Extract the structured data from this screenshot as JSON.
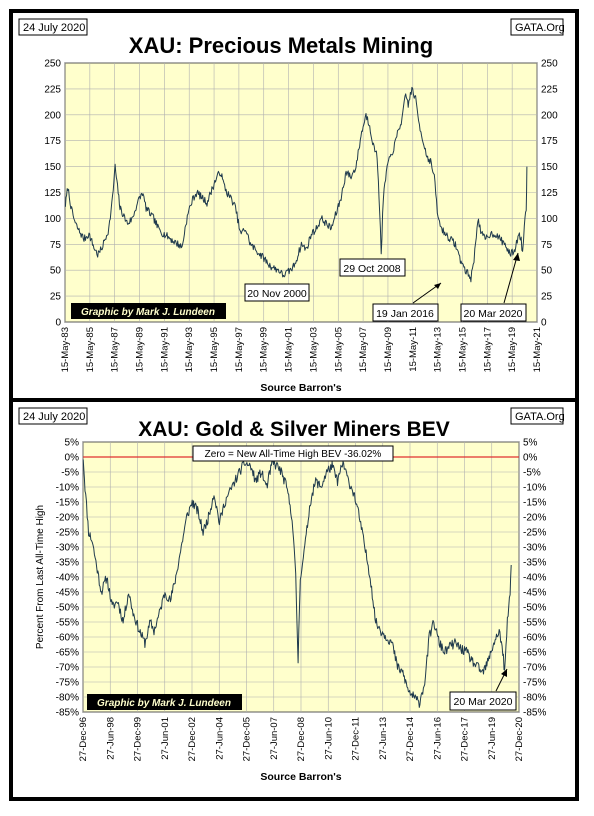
{
  "charts": [
    {
      "date_label": "24 July 2020",
      "source_label": "GATA.Org",
      "title": "XAU: Precious Metals Mining",
      "xlabel": "Source Barron's",
      "credit": "Graphic by Mark J. Lundeen",
      "subtitle": ""
    },
    {
      "date_label": "24 July 2020",
      "source_label": "GATA.Org",
      "title": "XAU: Gold & Silver Miners BEV",
      "xlabel": "Source Barron's",
      "ylabel": "Percent From Last All-Time High",
      "credit": "Graphic by Mark J. Lundeen",
      "subtitle": "Zero = New All-Time High BEV -36.02%"
    }
  ],
  "colors": {
    "plot_bg": "#ffffcc",
    "line": "#1f3a4d",
    "zero_line": "#e03030",
    "credit_bg": "#000000",
    "credit_text": "#ffffcc",
    "frame": "#000000"
  },
  "chart_data": [
    {
      "type": "line",
      "title": "XAU: Precious Metals Mining",
      "xlabel": "Source Barron's",
      "ylabel": "",
      "ylim": [
        0,
        250
      ],
      "yticks": [
        0,
        25,
        50,
        75,
        100,
        125,
        150,
        175,
        200,
        225,
        250
      ],
      "xlim": [
        1983.37,
        2021.37
      ],
      "xticks": [
        "15-May-83",
        "15-May-85",
        "15-May-87",
        "15-May-89",
        "15-May-91",
        "15-May-93",
        "15-May-95",
        "15-May-97",
        "15-May-99",
        "15-May-01",
        "15-May-03",
        "15-May-05",
        "15-May-07",
        "15-May-09",
        "15-May-11",
        "15-May-13",
        "15-May-15",
        "15-May-17",
        "15-May-19",
        "15-May-21"
      ],
      "grid": true,
      "series": [
        {
          "x": [
            1983.4,
            1983.6,
            1983.9,
            1984.2,
            1984.5,
            1984.9,
            1985.3,
            1985.7,
            1986.0,
            1986.3,
            1986.6,
            1986.9,
            1987.2,
            1987.4,
            1987.6,
            1987.8,
            1988.0,
            1988.4,
            1988.8,
            1989.2,
            1989.6,
            1989.9,
            1990.2,
            1990.5,
            1990.9,
            1991.3,
            1991.7,
            1992.1,
            1992.5,
            1992.8,
            1993.1,
            1993.4,
            1993.7,
            1994.0,
            1994.4,
            1994.8,
            1995.2,
            1995.6,
            1995.9,
            1996.1,
            1996.4,
            1996.8,
            1997.1,
            1997.5,
            1997.9,
            1998.3,
            1998.7,
            1999.1,
            1999.5,
            1999.8,
            2000.2,
            2000.6,
            2000.9,
            2001.3,
            2001.7,
            2002.0,
            2002.4,
            2002.8,
            2003.2,
            2003.6,
            2004.0,
            2004.4,
            2004.8,
            2005.2,
            2005.6,
            2006.0,
            2006.4,
            2006.8,
            2007.2,
            2007.6,
            2007.9,
            2008.2,
            2008.5,
            2008.7,
            2008.83,
            2009.0,
            2009.3,
            2009.6,
            2009.9,
            2010.2,
            2010.5,
            2010.8,
            2011.0,
            2011.3,
            2011.6,
            2011.9,
            2012.2,
            2012.5,
            2012.8,
            2013.1,
            2013.4,
            2013.7,
            2014.0,
            2014.4,
            2014.8,
            2015.2,
            2015.6,
            2015.9,
            2016.05,
            2016.3,
            2016.6,
            2016.9,
            2017.2,
            2017.6,
            2018.0,
            2018.4,
            2018.8,
            2019.2,
            2019.6,
            2019.9,
            2020.1,
            2020.21,
            2020.35,
            2020.5,
            2020.56
          ],
          "values": [
            113,
            130,
            108,
            95,
            88,
            80,
            85,
            72,
            65,
            70,
            80,
            90,
            120,
            150,
            130,
            110,
            105,
            95,
            100,
            115,
            125,
            110,
            105,
            100,
            90,
            85,
            82,
            78,
            75,
            72,
            95,
            110,
            120,
            125,
            120,
            115,
            128,
            140,
            145,
            135,
            125,
            118,
            110,
            85,
            90,
            75,
            70,
            65,
            60,
            55,
            52,
            50,
            45,
            48,
            52,
            60,
            75,
            70,
            85,
            90,
            100,
            95,
            90,
            105,
            120,
            145,
            140,
            150,
            180,
            200,
            190,
            170,
            160,
            110,
            65,
            120,
            150,
            160,
            170,
            185,
            195,
            220,
            210,
            225,
            215,
            190,
            175,
            160,
            155,
            140,
            100,
            90,
            85,
            80,
            75,
            60,
            50,
            45,
            42,
            60,
            100,
            85,
            80,
            85,
            85,
            80,
            75,
            65,
            70,
            85,
            80,
            65,
            95,
            110,
            150
          ],
          "smooth": 2,
          "noise": 3.5,
          "seed": 7
        }
      ],
      "annotations": [
        "20 Nov 2000",
        "29 Oct 2008",
        "19 Jan 2016",
        "20 Mar 2020"
      ]
    },
    {
      "type": "line",
      "title": "XAU: Gold & Silver Miners BEV",
      "xlabel": "Source Barron's",
      "ylabel": "Percent From Last All-Time High",
      "ylim": [
        -85,
        5
      ],
      "yticks": [
        5,
        0,
        -5,
        -10,
        -15,
        -20,
        -25,
        -30,
        -35,
        -40,
        -45,
        -50,
        -55,
        -60,
        -65,
        -70,
        -75,
        -80,
        -85
      ],
      "xlim": [
        1996.99,
        2020.99
      ],
      "xticks": [
        "27-Dec-96",
        "27-Jun-98",
        "27-Dec-99",
        "27-Jun-01",
        "27-Dec-02",
        "27-Jun-04",
        "27-Dec-05",
        "27-Jun-07",
        "27-Dec-08",
        "27-Jun-10",
        "27-Dec-11",
        "27-Jun-13",
        "27-Dec-14",
        "27-Jun-16",
        "27-Dec-17",
        "27-Jun-19",
        "27-Dec-20"
      ],
      "grid": true,
      "zero_line": 0,
      "series": [
        {
          "x": [
            1997.0,
            1997.1,
            1997.3,
            1997.5,
            1997.7,
            1998.0,
            1998.3,
            1998.6,
            1998.9,
            1999.2,
            1999.5,
            1999.75,
            2000.1,
            2000.4,
            2000.7,
            2000.9,
            2001.2,
            2001.5,
            2001.8,
            2002.1,
            2002.4,
            2002.7,
            2003.0,
            2003.3,
            2003.6,
            2003.9,
            2004.2,
            2004.5,
            2004.8,
            2005.2,
            2005.6,
            2005.9,
            2006.2,
            2006.5,
            2006.8,
            2007.1,
            2007.4,
            2007.7,
            2007.9,
            2008.2,
            2008.5,
            2008.7,
            2008.83,
            2008.95,
            2009.2,
            2009.5,
            2009.8,
            2010.1,
            2010.4,
            2010.7,
            2011.0,
            2011.3,
            2011.6,
            2011.9,
            2012.2,
            2012.5,
            2012.8,
            2013.1,
            2013.4,
            2013.7,
            2014.0,
            2014.3,
            2014.6,
            2014.9,
            2015.2,
            2015.5,
            2015.8,
            2016.05,
            2016.3,
            2016.6,
            2016.9,
            2017.2,
            2017.5,
            2017.8,
            2018.1,
            2018.4,
            2018.7,
            2019.0,
            2019.3,
            2019.6,
            2019.9,
            2020.1,
            2020.2,
            2020.35,
            2020.5,
            2020.56
          ],
          "values": [
            0,
            -10,
            -25,
            -28,
            -35,
            -45,
            -40,
            -50,
            -48,
            -55,
            -45,
            -52,
            -58,
            -62,
            -55,
            -58,
            -52,
            -45,
            -48,
            -40,
            -30,
            -20,
            -15,
            -18,
            -25,
            -20,
            -12,
            -22,
            -15,
            -10,
            -5,
            -2,
            -3,
            -8,
            -5,
            -10,
            -2,
            -3,
            -5,
            -10,
            -20,
            -40,
            -68,
            -40,
            -30,
            -15,
            -8,
            -10,
            -5,
            -3,
            -8,
            -2,
            -8,
            -12,
            -20,
            -30,
            -40,
            -55,
            -58,
            -60,
            -62,
            -70,
            -72,
            -78,
            -80,
            -82,
            -75,
            -60,
            -55,
            -62,
            -65,
            -63,
            -62,
            -64,
            -65,
            -68,
            -70,
            -72,
            -68,
            -62,
            -58,
            -65,
            -72,
            -55,
            -45,
            -36
          ],
          "smooth": 2,
          "noise": 1.6,
          "seed": 11
        }
      ],
      "annotations": [
        "20 Mar 2020"
      ]
    }
  ]
}
